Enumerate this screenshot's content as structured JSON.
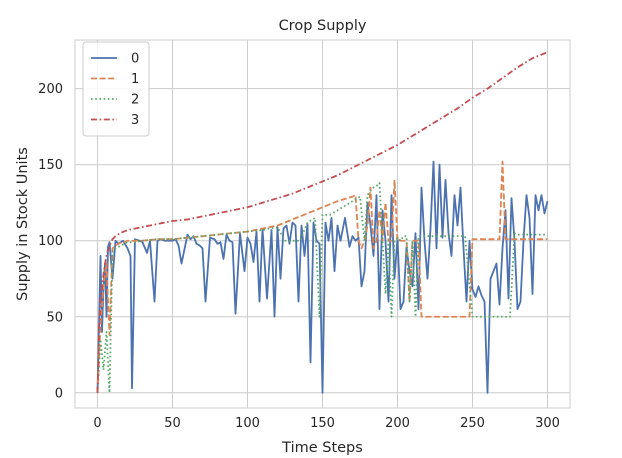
{
  "chart_data": {
    "type": "line",
    "title": "Crop Supply",
    "xlabel": "Time Steps",
    "ylabel": "Supply in Stock Units",
    "xlim": [
      -15,
      315
    ],
    "ylim": [
      -10,
      232
    ],
    "xticks": [
      0,
      50,
      100,
      150,
      200,
      250,
      300
    ],
    "yticks": [
      0,
      50,
      100,
      150,
      200
    ],
    "grid": true,
    "legend_position": "top-left",
    "series": [
      {
        "name": "0",
        "color": "#4c72b0",
        "style": "solid",
        "x": [
          0,
          2,
          3,
          4,
          5,
          6,
          7,
          8,
          10,
          12,
          14,
          17,
          20,
          22,
          23,
          25,
          28,
          30,
          33,
          35,
          38,
          40,
          42,
          45,
          50,
          52,
          54,
          56,
          60,
          62,
          64,
          66,
          68,
          70,
          72,
          75,
          78,
          80,
          82,
          84,
          86,
          88,
          90,
          92,
          95,
          98,
          100,
          102,
          104,
          106,
          108,
          110,
          113,
          116,
          118,
          120,
          122,
          124,
          126,
          128,
          130,
          132,
          134,
          136,
          138,
          140,
          142,
          144,
          146,
          148,
          150,
          152,
          154,
          156,
          158,
          160,
          162,
          165,
          168,
          170,
          172,
          174,
          176,
          178,
          180,
          182,
          184,
          186,
          188,
          190,
          192,
          194,
          196,
          198,
          200,
          202,
          204,
          206,
          208,
          210,
          212,
          214,
          216,
          218,
          220,
          222,
          224,
          226,
          228,
          230,
          232,
          234,
          236,
          238,
          240,
          242,
          244,
          246,
          248,
          250,
          252,
          254,
          256,
          258,
          260,
          262,
          264,
          266,
          268,
          270,
          272,
          274,
          276,
          278,
          280,
          282,
          284,
          286,
          288,
          290,
          292,
          294,
          296,
          298,
          300
        ],
        "values": [
          0,
          90,
          40,
          70,
          85,
          50,
          96,
          99,
          75,
          100,
          98,
          100,
          95,
          90,
          3,
          101,
          100,
          99,
          92,
          100,
          60,
          100,
          101,
          100,
          100,
          101,
          97,
          85,
          104,
          101,
          103,
          98,
          97,
          95,
          60,
          102,
          101,
          98,
          99,
          88,
          104,
          100,
          99,
          52,
          105,
          80,
          102,
          98,
          86,
          106,
          60,
          108,
          62,
          107,
          50,
          109,
          75,
          108,
          110,
          98,
          112,
          110,
          60,
          110,
          90,
          111,
          20,
          112,
          100,
          98,
          0,
          112,
          100,
          115,
          80,
          110,
          100,
          115,
          96,
          103,
          100,
          102,
          70,
          80,
          125,
          110,
          90,
          130,
          55,
          120,
          100,
          60,
          130,
          75,
          102,
          55,
          60,
          96,
          80,
          70,
          105,
          55,
          135,
          100,
          75,
          108,
          152,
          95,
          150,
          102,
          140,
          105,
          90,
          130,
          110,
          135,
          95,
          60,
          100,
          68,
          63,
          70,
          64,
          60,
          0,
          75,
          80,
          85,
          58,
          95,
          120,
          62,
          128,
          100,
          55,
          60,
          100,
          130,
          115,
          65,
          130,
          120,
          130,
          118,
          126
        ]
      },
      {
        "name": "1",
        "color": "#dd8452",
        "style": "dashed",
        "x": [
          0,
          2,
          4,
          6,
          8,
          10,
          12,
          14,
          16,
          18,
          20,
          25,
          30,
          40,
          50,
          60,
          70,
          80,
          90,
          100,
          110,
          120,
          130,
          140,
          150,
          160,
          170,
          172,
          174,
          176,
          178,
          180,
          182,
          184,
          186,
          188,
          190,
          192,
          194,
          196,
          198,
          200,
          202,
          204,
          206,
          208,
          210,
          212,
          214,
          216,
          218,
          220,
          222,
          224,
          226,
          228,
          230,
          232,
          234,
          236,
          238,
          240,
          242,
          244,
          246,
          248,
          250,
          255,
          260,
          265,
          268,
          270,
          272,
          274,
          276,
          278,
          280,
          290,
          300
        ],
        "values": [
          0,
          45,
          70,
          85,
          38,
          95,
          97,
          98,
          99,
          99,
          100,
          100,
          100,
          101,
          101,
          102,
          103,
          104,
          105,
          106,
          108,
          110,
          114,
          118,
          122,
          126,
          129,
          130,
          100,
          95,
          100,
          110,
          135,
          95,
          100,
          120,
          100,
          125,
          100,
          100,
          140,
          100,
          100,
          100,
          100,
          60,
          100,
          100,
          100,
          50,
          50,
          50,
          50,
          50,
          50,
          50,
          50,
          50,
          50,
          50,
          50,
          50,
          50,
          50,
          50,
          50,
          101,
          101,
          101,
          101,
          101,
          152,
          101,
          101,
          101,
          101,
          101,
          101,
          101
        ]
      },
      {
        "name": "2",
        "color": "#55a868",
        "style": "dotted",
        "x": [
          0,
          2,
          4,
          6,
          8,
          10,
          12,
          14,
          16,
          18,
          20,
          25,
          30,
          40,
          50,
          60,
          70,
          80,
          90,
          100,
          110,
          120,
          125,
          130,
          135,
          140,
          145,
          148,
          150,
          155,
          160,
          165,
          170,
          175,
          178,
          180,
          182,
          184,
          186,
          188,
          190,
          192,
          194,
          196,
          198,
          200,
          202,
          204,
          206,
          208,
          210,
          212,
          214,
          216,
          218,
          220,
          222,
          224,
          226,
          228,
          230,
          235,
          240,
          245,
          250,
          255,
          260,
          265,
          270,
          275,
          278,
          280,
          290,
          300
        ],
        "values": [
          0,
          35,
          15,
          40,
          0,
          93,
          95,
          96,
          97,
          98,
          99,
          99,
          100,
          101,
          101,
          102,
          103,
          104,
          105,
          106,
          107,
          109,
          100,
          100,
          100,
          112,
          115,
          50,
          117,
          117,
          120,
          123,
          126,
          129,
          100,
          130,
          133,
          135,
          136,
          138,
          100,
          65,
          100,
          50,
          100,
          102,
          100,
          103,
          103,
          60,
          100,
          50,
          103,
          103,
          103,
          103,
          103,
          103,
          103,
          103,
          103,
          103,
          103,
          103,
          50,
          50,
          50,
          50,
          50,
          50,
          105,
          104,
          104,
          104
        ]
      },
      {
        "name": "3",
        "color": "#c44e52",
        "style": "dashdot",
        "x": [
          0,
          1,
          2,
          3,
          4,
          5,
          6,
          7,
          8,
          10,
          12,
          15,
          20,
          30,
          40,
          50,
          60,
          70,
          80,
          90,
          100,
          110,
          120,
          130,
          140,
          150,
          160,
          170,
          180,
          190,
          200,
          210,
          220,
          230,
          240,
          250,
          260,
          270,
          280,
          290,
          300
        ],
        "values": [
          0,
          40,
          60,
          70,
          78,
          85,
          90,
          94,
          97,
          101,
          103,
          105,
          107,
          109,
          111,
          113,
          114,
          116,
          118,
          120,
          122,
          125,
          128,
          131,
          135,
          139,
          143,
          148,
          153,
          158,
          163,
          169,
          175,
          181,
          187,
          194,
          200,
          207,
          214,
          220,
          224
        ]
      }
    ]
  }
}
